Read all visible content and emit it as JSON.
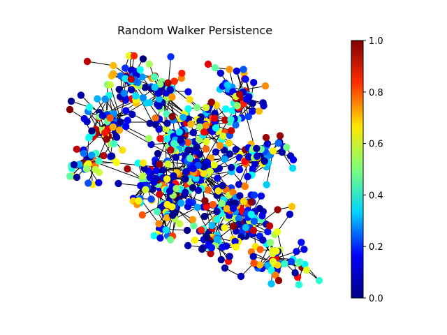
{
  "chart_data": {
    "type": "scatter",
    "subtype": "network-graph",
    "title": "Random Walker Persistence",
    "xlabel": "",
    "ylabel": "",
    "axes_visible": false,
    "grid": false,
    "colormap": "jet",
    "colorbar": {
      "orientation": "vertical",
      "placement": "right",
      "range": [
        0.0,
        1.0
      ],
      "ticks": [
        0.0,
        0.2,
        0.4,
        0.6,
        0.8,
        1.0
      ],
      "tick_labels": [
        "0.0",
        "0.2",
        "0.4",
        "0.6",
        "0.8",
        "1.0"
      ],
      "stops": [
        "#00007f",
        "#0000ff",
        "#00d4ff",
        "#7dff7a",
        "#ffe600",
        "#ff3000",
        "#7f0000"
      ]
    },
    "node_color": "persistence value (0–1)",
    "edge_color": "#000000",
    "node_count_approx": 520
  }
}
